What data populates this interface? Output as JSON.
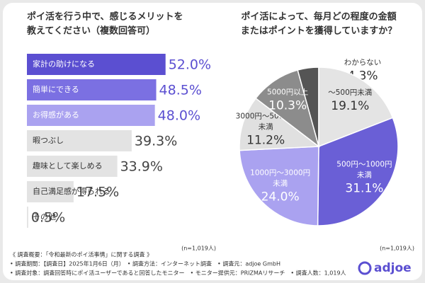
{
  "chart_data": [
    {
      "type": "hbar",
      "title": [
        "ポイ活を行う中で、感じるメリットを",
        "教えてください（複数回答可）"
      ],
      "categories": [
        "家計の助けになる",
        "簡単にできる",
        "お得感がある",
        "暇つぶし",
        "趣味として楽しめる",
        "自己満足感が得られる",
        "その他"
      ],
      "values": [
        52.0,
        48.5,
        48.0,
        39.3,
        33.9,
        17.5,
        0.5
      ],
      "value_labels": [
        "52.0%",
        "48.5%",
        "48.0%",
        "39.3%",
        "33.9%",
        "17.5%",
        "0.5%"
      ],
      "colors": [
        "#5b4fd1",
        "#7b70e2",
        "#aaa2f0",
        "#e3e3e3",
        "#e3e3e3",
        "#e3e3e3",
        "#e3e3e3"
      ],
      "xlim": [
        0,
        55
      ],
      "note": "(n=1,019人)"
    },
    {
      "type": "pie",
      "title": [
        "ポイ活によって、毎月どの程度の金額",
        "またはポイントを獲得していますか？"
      ],
      "categories": [
        [
          "わからない"
        ],
        [
          "〜500円未満"
        ],
        [
          "500円〜1000円",
          "未満"
        ],
        [
          "1000円〜3000円",
          "未満"
        ],
        [
          "3000円〜5000円",
          "未満"
        ],
        [
          "5000円以上"
        ]
      ],
      "values": [
        4.3,
        19.1,
        31.1,
        24.0,
        11.2,
        10.3
      ],
      "value_labels": [
        "4.3%",
        "19.1%",
        "31.1%",
        "24.0%",
        "11.2%",
        "10.3%"
      ],
      "colors": [
        "#555555",
        "#e4e4e4",
        "#6a5fd6",
        "#aaa2f0",
        "#e0e0e0",
        "#8c8c8c"
      ],
      "note": "(n=1,019人)"
    }
  ],
  "footer": {
    "heading": "《 調査概要：「令和最新のポイ活事情」に関する調査 》",
    "lines": [
      "• 調査期間：【調査日】2025年1月6日（月）　• 調査方法：インターネット調査　• 調査元：adjoe GmbH",
      "• 調査対象：調査回答時にポイ活ユーザーであると回答したモニター　• モニター提供元：PRIZMAリサーチ　• 調査人数：1,019人"
    ],
    "logo": "adjoe"
  }
}
